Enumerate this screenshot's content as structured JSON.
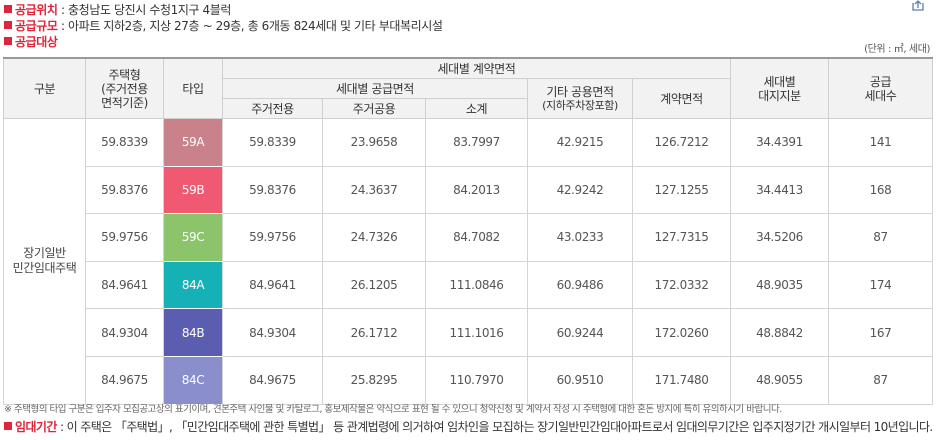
{
  "info": [
    {
      "label": "공급위치",
      "text": ": 충청남도 당진시 수청1지구 4블럭"
    },
    {
      "label": "공급규모",
      "text": ": 아파트 지하2층, 지상 27층 ~ 29층, 총 6개동 824세대 및 기타 부대복리시설"
    }
  ],
  "section_title": "공급대상",
  "unit": "(단위 : ㎡, 세대)",
  "table": {
    "headers": {
      "category": "구분",
      "house_type": [
        "주택형",
        "(주거전용",
        "면적기준)"
      ],
      "type": "타입",
      "contract_group": "세대별 계약면적",
      "supply_group": "세대별 공급면적",
      "exclusive": "주거전용",
      "common": "주거공용",
      "subtotal": "소계",
      "other_common": [
        "기타 공용면적",
        "(지하주차장포함)"
      ],
      "contract": "계약면적",
      "land": [
        "세대별",
        "대지지분"
      ],
      "units": [
        "공급",
        "세대수"
      ]
    },
    "group_label": [
      "장기일반",
      "민간임대주택"
    ],
    "type_colors": [
      "#c9818a",
      "#ef5a72",
      "#8cc46b",
      "#16b1b6",
      "#5b5eb0",
      "#8a8ecb"
    ],
    "rows": [
      [
        "59.8339",
        "59A",
        "59.8339",
        "23.9658",
        "83.7997",
        "42.9215",
        "126.7212",
        "34.4391",
        "141"
      ],
      [
        "59.8376",
        "59B",
        "59.8376",
        "24.3637",
        "84.2013",
        "42.9242",
        "127.1255",
        "34.4413",
        "168"
      ],
      [
        "59.9756",
        "59C",
        "59.9756",
        "24.7326",
        "84.7082",
        "43.0233",
        "127.7315",
        "34.5206",
        "87"
      ],
      [
        "84.9641",
        "84A",
        "84.9641",
        "26.1205",
        "111.0846",
        "60.9486",
        "172.0332",
        "48.9035",
        "174"
      ],
      [
        "84.9304",
        "84B",
        "84.9304",
        "26.1712",
        "111.1016",
        "60.9244",
        "172.0260",
        "48.8842",
        "167"
      ],
      [
        "84.9675",
        "84C",
        "84.9675",
        "25.8295",
        "110.7970",
        "60.9510",
        "171.7480",
        "48.9055",
        "87"
      ]
    ]
  },
  "footnote": "※ 주택형의 타입 구분은 입주자 모집공고상의 표기이며, 견본주택 사인물 및 카탈로그, 홍보제작물은 약식으로 표현 될 수 있으니 청약신청 및 계약서 작성 시 주택형에 대한 혼돈 방지에 특히 유의하시기 바랍니다.",
  "lease": {
    "label": "임대기간",
    "text": ": 이 주택은 「주택법」, 「민간임대주택에 관한 특별법」 등 관계법령에 의거하여 임차인을 모집하는 장기일반민간임대아파트로서 임대의무기간은 입주지정기간 개시일부터 10년입니다."
  }
}
